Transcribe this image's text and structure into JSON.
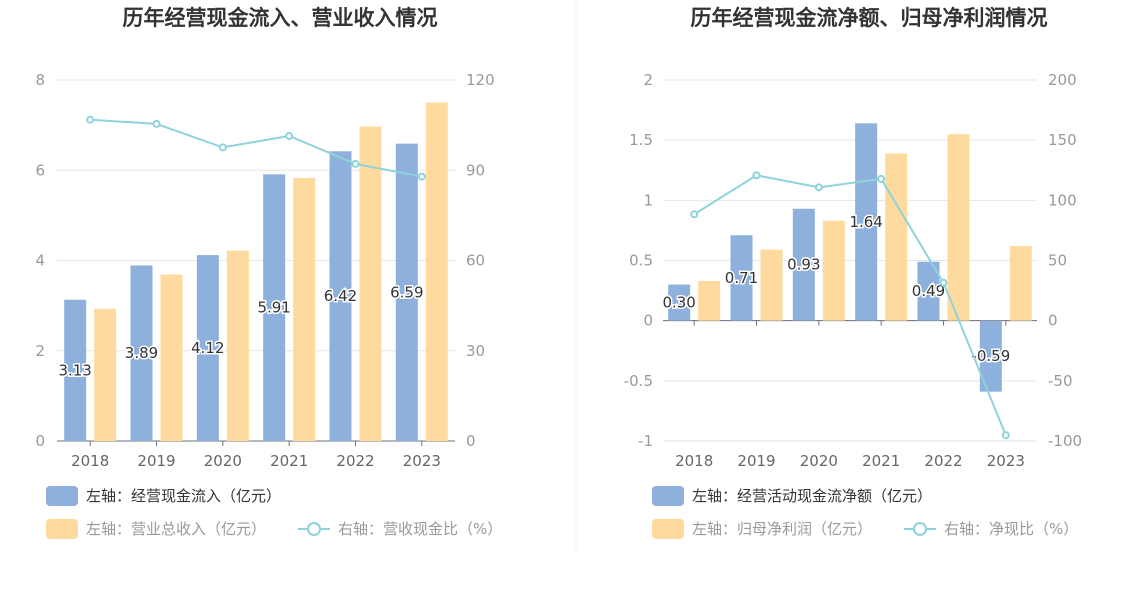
{
  "chart_data": [
    {
      "type": "bar",
      "title": "历年经营现金流入、营业收入情况",
      "categories": [
        "2018",
        "2019",
        "2020",
        "2021",
        "2022",
        "2023"
      ],
      "left_axis": {
        "ylim": [
          0,
          8
        ],
        "ticks": [
          0,
          2,
          4,
          6,
          8
        ]
      },
      "right_axis": {
        "ylim": [
          0,
          120
        ],
        "ticks": [
          0,
          30,
          60,
          90,
          120
        ]
      },
      "series": [
        {
          "name": "左轴：经营现金流入（亿元）",
          "kind": "bar",
          "axis": "left",
          "color": "#8eb0dc",
          "values": [
            3.13,
            3.89,
            4.12,
            5.91,
            6.42,
            6.59
          ],
          "labels": [
            "3.13",
            "3.89",
            "4.12",
            "5.91",
            "6.42",
            "6.59"
          ]
        },
        {
          "name": "左轴：营业总收入（亿元）",
          "kind": "bar",
          "axis": "left",
          "color": "#ffda9e",
          "values": [
            2.93,
            3.69,
            4.22,
            5.83,
            6.97,
            7.5
          ]
        },
        {
          "name": "右轴：营收现金比（%）",
          "kind": "line",
          "axis": "right",
          "color": "#8ed3dc",
          "values": [
            106.8,
            105.4,
            97.6,
            101.4,
            92.1,
            87.9
          ]
        }
      ],
      "grid": true,
      "legend_position": "bottom-left"
    },
    {
      "type": "bar",
      "title": "历年经营现金流净额、归母净利润情况",
      "categories": [
        "2018",
        "2019",
        "2020",
        "2021",
        "2022",
        "2023"
      ],
      "left_axis": {
        "ylim": [
          -1,
          2
        ],
        "ticks": [
          -1,
          -0.5,
          0,
          0.5,
          1,
          1.5,
          2
        ],
        "tick_labels": [
          "-1",
          "-0.5",
          "0",
          "0.5",
          "1",
          "1.5",
          "2"
        ]
      },
      "right_axis": {
        "ylim": [
          -100,
          200
        ],
        "ticks": [
          -100,
          -50,
          0,
          50,
          100,
          150,
          200
        ]
      },
      "series": [
        {
          "name": "左轴：经营活动现金流净额（亿元）",
          "kind": "bar",
          "axis": "left",
          "color": "#8eb0dc",
          "values": [
            0.3,
            0.71,
            0.93,
            1.64,
            0.49,
            -0.59
          ],
          "labels": [
            "0.30",
            "0.71",
            "0.93",
            "1.64",
            "0.49",
            "-0.59"
          ]
        },
        {
          "name": "左轴：归母净利润（亿元）",
          "kind": "bar",
          "axis": "left",
          "color": "#ffda9e",
          "values": [
            0.33,
            0.59,
            0.83,
            1.39,
            1.55,
            0.62
          ]
        },
        {
          "name": "右轴：净现比（%）",
          "kind": "line",
          "axis": "right",
          "color": "#8ed3dc",
          "values": [
            88.4,
            120.8,
            110.8,
            117.8,
            31.5,
            -95.2
          ]
        }
      ],
      "grid": true,
      "legend_position": "bottom-left"
    }
  ]
}
